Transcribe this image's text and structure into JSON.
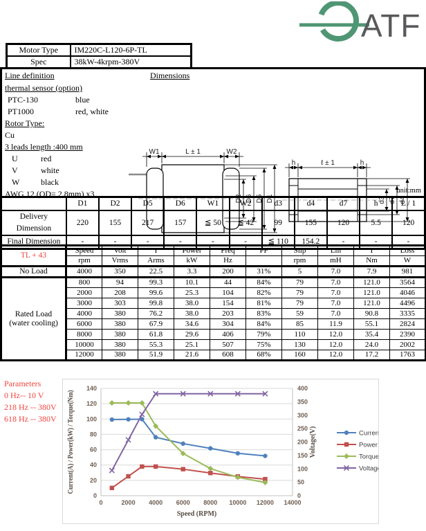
{
  "logo": {
    "text": "ATF",
    "arc_color": "#4f9674",
    "text_color": "#58595b"
  },
  "motor_table": {
    "rows": [
      {
        "label": "Motor Type",
        "value": "IM220C-L120-6P-TL"
      },
      {
        "label": "Spec",
        "value": "38kW-4krpm-380V"
      }
    ]
  },
  "section_titles": {
    "line_definition": "Line definition",
    "dimensions": "Dimensions"
  },
  "line_definition": {
    "lines": [
      {
        "text": "thermal sensor (option)",
        "underline": true
      },
      {
        "label": "PTC-130",
        "value": "blue"
      },
      {
        "label": "PT1000",
        "value": "red, white"
      },
      {
        "text": "Rotor Type:",
        "underline": true
      },
      {
        "text": "Cu"
      },
      {
        "text": "3 leads length :400 mm",
        "underline": true
      },
      {
        "label": "U",
        "value": "red"
      },
      {
        "label": "V",
        "value": "white"
      },
      {
        "label": "W",
        "value": "black"
      },
      {
        "text": "AWG 12 (OD= 2.8mm) x3"
      }
    ]
  },
  "unit_note": "unit:mm",
  "drawing_left": {
    "top_labels": [
      "W1",
      "L ± 1",
      "W2"
    ],
    "dim_labels": [
      "D2",
      "D6",
      "D5",
      "D1"
    ]
  },
  "drawing_right": {
    "top_labels": [
      "h",
      "ℓ ± 1",
      "h"
    ],
    "dim_labels": [
      "d3",
      "d7",
      "d4"
    ]
  },
  "dim_table": {
    "headers": [
      "",
      "D1",
      "D2",
      "D5",
      "D6",
      "W1",
      "W2",
      "d3",
      "d4",
      "d7",
      "h",
      "L / 1"
    ],
    "rows": [
      {
        "label": "Delivery Dimension",
        "values": [
          "220",
          "155",
          "217",
          "157",
          "≦ 50",
          "≦ 42",
          "99",
          "155",
          "120",
          "5.5",
          "120"
        ]
      },
      {
        "label": "Final Dimension",
        "values": [
          "-",
          "-",
          "-",
          "-",
          "-",
          "-",
          "≦ 110",
          "154.2",
          "-",
          "-",
          "-"
        ]
      }
    ]
  },
  "perf_table": {
    "corner_label": "TL + 43",
    "accent_red": "#f0433e",
    "col_headers": [
      "Speed",
      "Volt",
      "I",
      "Power",
      "Freq",
      "PF",
      "Slip",
      "Lm",
      "T",
      "Loss"
    ],
    "unit_row": [
      "rpm",
      "Vrms",
      "Arms",
      "kW",
      "Hz",
      "",
      "rpm",
      "mH",
      "Nm",
      "W"
    ],
    "groups": [
      {
        "label": [
          "No Load"
        ],
        "rows": [
          [
            "4000",
            "350",
            "22.5",
            "3.3",
            "200",
            "31%",
            "5",
            "7.0",
            "7.9",
            "981"
          ]
        ]
      },
      {
        "label": [
          "Rated Load",
          "(water cooling)"
        ],
        "rows": [
          [
            "800",
            "94",
            "99.3",
            "10.1",
            "44",
            "84%",
            "79",
            "7.0",
            "121.0",
            "3564"
          ],
          [
            "2000",
            "208",
            "99.6",
            "25.3",
            "104",
            "82%",
            "79",
            "7.0",
            "121.0",
            "4046"
          ],
          [
            "3000",
            "303",
            "99.8",
            "38.0",
            "154",
            "81%",
            "79",
            "7.0",
            "121.0",
            "4496"
          ],
          [
            "4000",
            "380",
            "76.2",
            "38.0",
            "203",
            "83%",
            "59",
            "7.0",
            "90.8",
            "3335"
          ],
          [
            "6000",
            "380",
            "67.9",
            "34.6",
            "304",
            "84%",
            "85",
            "11.9",
            "55.1",
            "2824"
          ],
          [
            "8000",
            "380",
            "61.8",
            "29.6",
            "406",
            "79%",
            "110",
            "12.0",
            "35.4",
            "2390"
          ],
          [
            "10000",
            "380",
            "55.3",
            "25.1",
            "507",
            "75%",
            "130",
            "12.0",
            "24.0",
            "2002"
          ],
          [
            "12000",
            "380",
            "51.9",
            "21.6",
            "608",
            "68%",
            "160",
            "12.0",
            "17.2",
            "1763"
          ]
        ]
      }
    ]
  },
  "parameters": {
    "title": "Parameters",
    "lines": [
      "0 Hz-- 10 V",
      "218 Hz -- 380V",
      "618 Hz -- 380V"
    ]
  },
  "chart_data": {
    "type": "line",
    "x": [
      800,
      2000,
      3000,
      4000,
      6000,
      8000,
      10000,
      12000
    ],
    "series": [
      {
        "name": "Current",
        "color": "#4F81BD",
        "marker": "circle",
        "axis": "left",
        "values": [
          99.3,
          99.6,
          99.8,
          76.2,
          67.9,
          61.8,
          55.3,
          51.9
        ]
      },
      {
        "name": "Power",
        "color": "#C0504D",
        "marker": "square",
        "axis": "left",
        "values": [
          10.1,
          25.3,
          38.0,
          38.0,
          34.6,
          29.6,
          25.1,
          21.6
        ]
      },
      {
        "name": "Torque",
        "color": "#9BBB59",
        "marker": "diamond",
        "axis": "left",
        "values": [
          121.0,
          121.0,
          121.0,
          90.8,
          55.1,
          35.4,
          24.0,
          17.2
        ]
      },
      {
        "name": "Voltage",
        "color": "#8064A2",
        "marker": "x",
        "axis": "right",
        "values": [
          94,
          208,
          303,
          380,
          380,
          380,
          380,
          380
        ]
      }
    ],
    "title": "",
    "xlabel": "Speed (RPM)",
    "ylabel_left": "Current(A) / Power(kW) / Torque(Nm)",
    "ylabel_right": "Voltage(V)",
    "xlim": [
      0,
      14000
    ],
    "xtick_step": 2000,
    "ylim_left": [
      0,
      140
    ],
    "ytick_left_step": 20,
    "ylim_right": [
      0,
      400
    ],
    "ytick_right_step": 50,
    "grid": true,
    "legend_position": "right"
  }
}
